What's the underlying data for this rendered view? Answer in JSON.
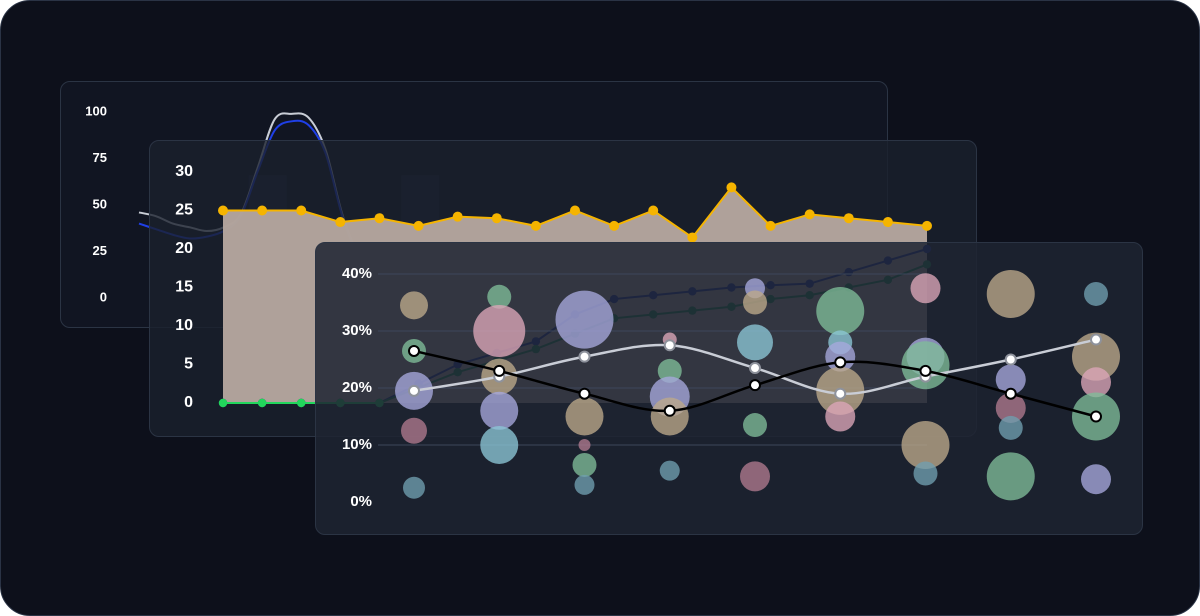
{
  "chart_data": [
    {
      "type": "line",
      "y_ticks": [
        "100",
        "75",
        "50",
        "25",
        "0"
      ],
      "ylim": [
        0,
        100
      ],
      "x_count": 20,
      "series": [
        {
          "color": "#c9cdd6",
          "values": [
            46,
            44,
            40,
            38,
            36,
            38,
            45,
            70,
            96,
            99,
            97,
            80,
            45,
            22,
            14,
            12,
            11,
            10,
            12,
            15
          ]
        },
        {
          "color": "#1f3fe6",
          "values": [
            40,
            37,
            34,
            32,
            33,
            36,
            44,
            68,
            90,
            95,
            93,
            78,
            44,
            22,
            16,
            14,
            13,
            12,
            14,
            16
          ]
        }
      ],
      "background_bars": [
        {
          "x_index": 6,
          "value": 66
        },
        {
          "x_index": 15,
          "value": 66
        }
      ],
      "grid": false
    },
    {
      "type": "area",
      "y_ticks": [
        "30",
        "25",
        "20",
        "15",
        "10",
        "5",
        "0"
      ],
      "ylim": [
        0,
        30
      ],
      "x_count": 19,
      "series": [
        {
          "color": "#f5b400",
          "fill": "#b7a9a0",
          "values": [
            25,
            25,
            25,
            23.5,
            24,
            23,
            24.2,
            24,
            23,
            25,
            23,
            25,
            21.5,
            28,
            23,
            24.5,
            24,
            23.5,
            23
          ]
        },
        {
          "color": "#1b2a8c",
          "values": [
            0,
            0,
            0,
            0,
            0,
            2.5,
            5,
            6.5,
            8,
            11.5,
            13.5,
            14,
            14.5,
            15,
            15.3,
            15.5,
            17,
            18.5,
            20
          ]
        },
        {
          "color": "#1b7f46",
          "values": [
            0,
            0,
            0,
            0,
            0,
            2,
            4,
            5.5,
            7,
            9,
            11,
            11.5,
            12,
            12.5,
            13.5,
            14,
            15,
            16,
            18
          ]
        },
        {
          "color": "#22d65c",
          "values": [
            0,
            0,
            0,
            0,
            0
          ]
        }
      ],
      "grid": false
    },
    {
      "type": "scatter",
      "y_ticks": [
        "40%",
        "30%",
        "20%",
        "10%",
        "0%"
      ],
      "ylim": [
        0,
        40
      ],
      "x_count": 9,
      "bubbles": [
        {
          "x": 0,
          "y": 34.5,
          "r": 14,
          "color": "#bca98a"
        },
        {
          "x": 0,
          "y": 26.5,
          "r": 12,
          "color": "#7fbd99"
        },
        {
          "x": 0,
          "y": 19.5,
          "r": 19,
          "color": "#a6a8dd"
        },
        {
          "x": 0,
          "y": 12.5,
          "r": 13,
          "color": "#b07a8e"
        },
        {
          "x": 0,
          "y": 2.5,
          "r": 11,
          "color": "#6f9fb0"
        },
        {
          "x": 1,
          "y": 36,
          "r": 12,
          "color": "#7fbd99"
        },
        {
          "x": 1,
          "y": 30,
          "r": 26,
          "color": "#dca6b8"
        },
        {
          "x": 1,
          "y": 22,
          "r": 18,
          "color": "#bca98a"
        },
        {
          "x": 1,
          "y": 16,
          "r": 19,
          "color": "#a6a8dd"
        },
        {
          "x": 1,
          "y": 10,
          "r": 19,
          "color": "#8cc6d6"
        },
        {
          "x": 2,
          "y": 32,
          "r": 29,
          "color": "#a6a8dd"
        },
        {
          "x": 2,
          "y": 15,
          "r": 19,
          "color": "#bca98a"
        },
        {
          "x": 2,
          "y": 10,
          "r": 6,
          "color": "#b07a8e"
        },
        {
          "x": 2,
          "y": 6.5,
          "r": 12,
          "color": "#7fbd99"
        },
        {
          "x": 2,
          "y": 3,
          "r": 10,
          "color": "#6f9fb0"
        },
        {
          "x": 3,
          "y": 28.5,
          "r": 7,
          "color": "#dca6b8"
        },
        {
          "x": 3,
          "y": 23,
          "r": 12,
          "color": "#7fbd99"
        },
        {
          "x": 3,
          "y": 18.5,
          "r": 20,
          "color": "#a6a8dd"
        },
        {
          "x": 3,
          "y": 15,
          "r": 19,
          "color": "#bca98a"
        },
        {
          "x": 3,
          "y": 5.5,
          "r": 10,
          "color": "#6f9fb0"
        },
        {
          "x": 4,
          "y": 37.5,
          "r": 10,
          "color": "#a6a8dd"
        },
        {
          "x": 4,
          "y": 35,
          "r": 12,
          "color": "#bca98a"
        },
        {
          "x": 4,
          "y": 28,
          "r": 18,
          "color": "#8cc6d6"
        },
        {
          "x": 4,
          "y": 13.5,
          "r": 12,
          "color": "#7fbd99"
        },
        {
          "x": 4,
          "y": 4.5,
          "r": 15,
          "color": "#b07a8e"
        },
        {
          "x": 5,
          "y": 33.5,
          "r": 24,
          "color": "#7fbd99"
        },
        {
          "x": 5,
          "y": 28,
          "r": 12,
          "color": "#8cc6d6"
        },
        {
          "x": 5,
          "y": 25.5,
          "r": 15,
          "color": "#a6a8dd"
        },
        {
          "x": 5,
          "y": 19.5,
          "r": 24,
          "color": "#bca98a"
        },
        {
          "x": 5,
          "y": 15,
          "r": 15,
          "color": "#dca6b8"
        },
        {
          "x": 6,
          "y": 37.5,
          "r": 15,
          "color": "#dca6b8"
        },
        {
          "x": 6,
          "y": 25.5,
          "r": 19,
          "color": "#a6a8dd"
        },
        {
          "x": 6,
          "y": 24,
          "r": 24,
          "color": "#7fbd99"
        },
        {
          "x": 6,
          "y": 10,
          "r": 24,
          "color": "#bca98a"
        },
        {
          "x": 6,
          "y": 5,
          "r": 12,
          "color": "#6f9fb0"
        },
        {
          "x": 7,
          "y": 36.5,
          "r": 24,
          "color": "#bca98a"
        },
        {
          "x": 7,
          "y": 21.5,
          "r": 15,
          "color": "#a6a8dd"
        },
        {
          "x": 7,
          "y": 16.5,
          "r": 15,
          "color": "#b07a8e"
        },
        {
          "x": 7,
          "y": 13,
          "r": 12,
          "color": "#6f9fb0"
        },
        {
          "x": 7,
          "y": 4.5,
          "r": 24,
          "color": "#7fbd99"
        },
        {
          "x": 8,
          "y": 36.5,
          "r": 12,
          "color": "#6f9fb0"
        },
        {
          "x": 8,
          "y": 25.5,
          "r": 24,
          "color": "#bca98a"
        },
        {
          "x": 8,
          "y": 21,
          "r": 15,
          "color": "#dca6b8"
        },
        {
          "x": 8,
          "y": 15,
          "r": 24,
          "color": "#7fbd99"
        },
        {
          "x": 8,
          "y": 4,
          "r": 15,
          "color": "#a6a8dd"
        }
      ],
      "series": [
        {
          "color": "#c9cdd6",
          "values": [
            19.5,
            22,
            25.5,
            27.5,
            23.5,
            19,
            22,
            25,
            28.5
          ]
        },
        {
          "color": "#000000",
          "values": [
            26.5,
            23,
            19,
            16,
            20.5,
            24.5,
            23,
            19,
            15
          ]
        }
      ],
      "grid": true
    }
  ]
}
